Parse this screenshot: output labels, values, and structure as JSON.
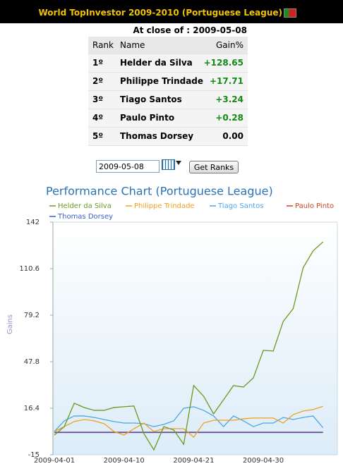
{
  "header": {
    "title": "World TopInvestor 2009-2010 (Portuguese League)"
  },
  "close": "At close of : 2009-05-08",
  "table": {
    "columns": [
      "Rank",
      "Name",
      "Gain%"
    ],
    "rows": [
      {
        "rank": "1º",
        "name": "Helder da Silva",
        "gain": "+128.65",
        "color": "#138a13"
      },
      {
        "rank": "2º",
        "name": "Philippe Trindade",
        "gain": "+17.71",
        "color": "#138a13"
      },
      {
        "rank": "3º",
        "name": "Tiago Santos",
        "gain": "+3.24",
        "color": "#138a13"
      },
      {
        "rank": "4º",
        "name": "Paulo Pinto",
        "gain": "+0.28",
        "color": "#138a13"
      },
      {
        "rank": "5º",
        "name": "Thomas Dorsey",
        "gain": "0.00",
        "color": "#000000"
      }
    ]
  },
  "form": {
    "date": "2009-05-08",
    "button": "Get Ranks"
  },
  "chart_data": {
    "type": "line",
    "title": "Performance Chart (Portuguese League)",
    "ylabel": "Gains",
    "categories": [
      "2009-04-01",
      null,
      null,
      null,
      null,
      null,
      null,
      "2009-04-10",
      null,
      null,
      null,
      null,
      null,
      null,
      "2009-04-21",
      null,
      null,
      null,
      null,
      null,
      null,
      "2009-04-30",
      null,
      null,
      null,
      null,
      null,
      null
    ],
    "series": [
      {
        "name": "Helder da Silva",
        "color": "#6a9a1f",
        "values": [
          -1.7,
          4.0,
          19.8,
          16.9,
          15.0,
          15.0,
          16.9,
          17.4,
          17.9,
          -0.7,
          -11.7,
          4.0,
          1.7,
          -7.9,
          31.7,
          24.5,
          12.6,
          22.1,
          31.7,
          30.7,
          36.9,
          55.5,
          55.0,
          75.0,
          83.6,
          111.2,
          122.6,
          128.65
        ]
      },
      {
        "name": "Philippe Trindade",
        "color": "#f0a020",
        "values": [
          0.7,
          4.0,
          7.4,
          8.8,
          7.9,
          6.0,
          0.7,
          -1.7,
          2.6,
          6.4,
          0.7,
          2.6,
          2.6,
          2.6,
          -3.1,
          6.4,
          8.3,
          8.3,
          8.3,
          9.3,
          9.8,
          9.8,
          9.8,
          6.4,
          12.1,
          14.5,
          15.5,
          17.71
        ]
      },
      {
        "name": "Tiago Santos",
        "color": "#4da6e8",
        "values": [
          0.7,
          7.9,
          11.2,
          11.2,
          10.2,
          8.8,
          7.4,
          6.4,
          6.4,
          6.0,
          4.0,
          5.5,
          7.9,
          16.4,
          17.4,
          15.0,
          11.2,
          4.0,
          11.2,
          7.9,
          4.0,
          6.4,
          6.4,
          10.2,
          8.8,
          10.2,
          11.2,
          3.24
        ]
      },
      {
        "name": "Paulo Pinto",
        "color": "#d04020",
        "values": [
          0.3,
          0.3,
          0.3,
          0.3,
          0.3,
          0.3,
          0.3,
          0.3,
          0.3,
          0.3,
          0.3,
          0.3,
          0.3,
          0.3,
          0.3,
          0.3,
          0.3,
          0.3,
          0.3,
          0.3,
          0.3,
          0.3,
          0.3,
          0.3,
          0.3,
          0.3,
          0.3,
          0.28
        ]
      },
      {
        "name": "Thomas Dorsey",
        "color": "#3a5fcd",
        "values": [
          0,
          0,
          0,
          0,
          0,
          0,
          0,
          0,
          0,
          0,
          0,
          0,
          0,
          0,
          0,
          0,
          0,
          0,
          0,
          0,
          0,
          0,
          0,
          0,
          0,
          0,
          0,
          0
        ]
      }
    ],
    "ylim": [
      -15,
      142
    ],
    "yticks": [
      -15,
      16.4,
      47.8,
      79.2,
      110.6,
      142
    ],
    "grid": false
  }
}
